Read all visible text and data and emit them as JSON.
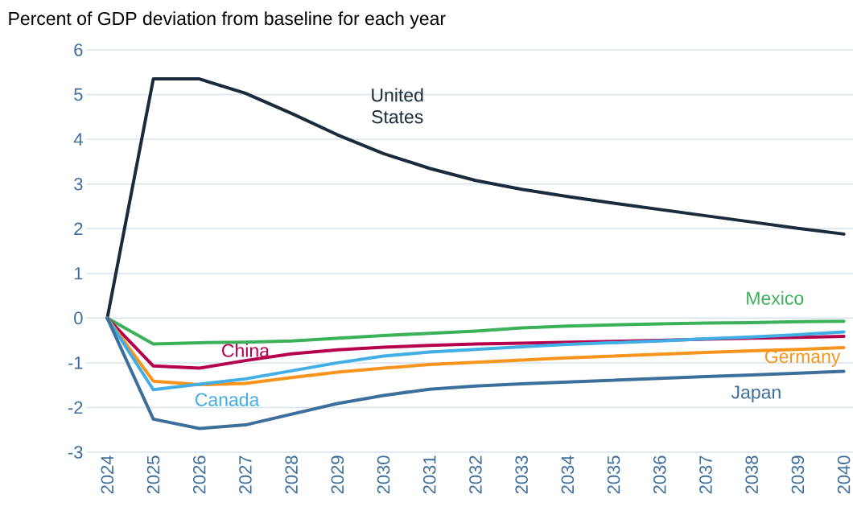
{
  "chart_data": {
    "type": "line",
    "ylabel": "Percent of GDP deviation from baseline for each year",
    "categories": [
      "2024",
      "2025",
      "2026",
      "2027",
      "2028",
      "2029",
      "2030",
      "2031",
      "2032",
      "2033",
      "2034",
      "2035",
      "2036",
      "2037",
      "2038",
      "2039",
      "2040"
    ],
    "ylim": [
      -3,
      6
    ],
    "yticks": [
      -3,
      -2,
      -1,
      0,
      1,
      2,
      3,
      4,
      5,
      6
    ],
    "grid": "y",
    "legend": false,
    "series": [
      {
        "name": "United States",
        "color": "#1a2b3c",
        "values": [
          0,
          5.35,
          5.35,
          5.03,
          4.58,
          4.1,
          3.68,
          3.35,
          3.08,
          2.88,
          2.72,
          2.57,
          2.43,
          2.29,
          2.15,
          2.01,
          1.88
        ]
      },
      {
        "name": "Mexico",
        "color": "#3bb15a",
        "values": [
          0,
          -0.58,
          -0.55,
          -0.54,
          -0.51,
          -0.45,
          -0.39,
          -0.34,
          -0.29,
          -0.22,
          -0.18,
          -0.15,
          -0.13,
          -0.11,
          -0.1,
          -0.08,
          -0.07
        ]
      },
      {
        "name": "China",
        "color": "#b5004e",
        "values": [
          0,
          -1.07,
          -1.12,
          -0.95,
          -0.8,
          -0.71,
          -0.65,
          -0.61,
          -0.58,
          -0.56,
          -0.54,
          -0.52,
          -0.5,
          -0.47,
          -0.45,
          -0.43,
          -0.41
        ]
      },
      {
        "name": "Germany",
        "color": "#f7941d",
        "values": [
          0,
          -1.41,
          -1.49,
          -1.46,
          -1.33,
          -1.21,
          -1.12,
          -1.04,
          -0.99,
          -0.94,
          -0.89,
          -0.85,
          -0.81,
          -0.77,
          -0.73,
          -0.7,
          -0.66
        ]
      },
      {
        "name": "Canada",
        "color": "#41aee6",
        "values": [
          0,
          -1.6,
          -1.48,
          -1.36,
          -1.18,
          -1.0,
          -0.85,
          -0.76,
          -0.7,
          -0.64,
          -0.59,
          -0.55,
          -0.51,
          -0.46,
          -0.42,
          -0.37,
          -0.31
        ]
      },
      {
        "name": "Japan",
        "color": "#3d6f9c",
        "values": [
          0,
          -2.26,
          -2.47,
          -2.39,
          -2.15,
          -1.91,
          -1.73,
          -1.59,
          -1.52,
          -1.47,
          -1.43,
          -1.39,
          -1.35,
          -1.31,
          -1.27,
          -1.23,
          -1.19
        ]
      }
    ]
  }
}
